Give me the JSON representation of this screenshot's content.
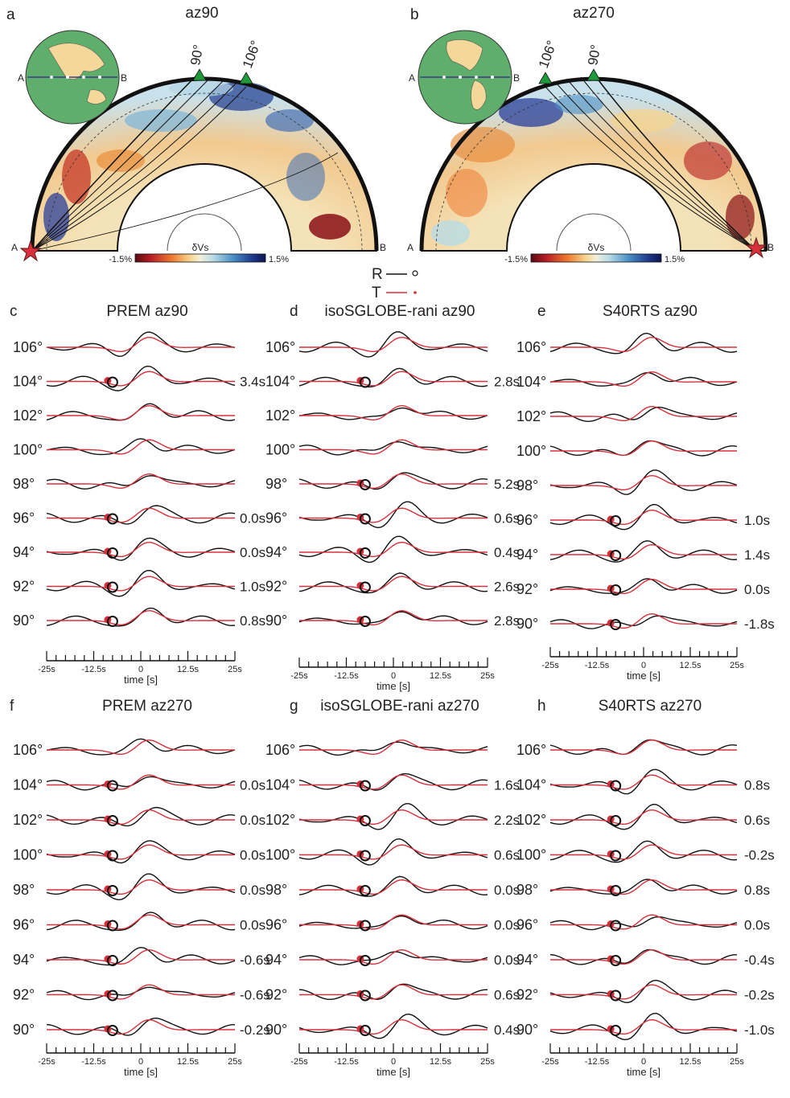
{
  "colors": {
    "radial": "#111111",
    "transverse": "#d7303b",
    "station": "#1e9a3a",
    "source": "#d7303b",
    "ocean": "#5fae6c",
    "land": "#f3d89a"
  },
  "sections": [
    {
      "letter": "a",
      "title": "az90",
      "station_labels": [
        "90°",
        "106°"
      ],
      "end_labels": [
        "A",
        "B"
      ],
      "colorbar": {
        "label": "δVs",
        "min": "-1.5%",
        "max": "1.5%"
      }
    },
    {
      "letter": "b",
      "title": "az270",
      "station_labels": [
        "106°",
        "90°"
      ],
      "end_labels": [
        "A",
        "B"
      ],
      "colorbar": {
        "label": "δVs",
        "min": "-1.5%",
        "max": "1.5%"
      }
    }
  ],
  "globes": [
    {
      "labels": [
        "A",
        "B"
      ]
    },
    {
      "labels": [
        "A",
        "B"
      ]
    }
  ],
  "legend": [
    {
      "label": "R",
      "symbol": "open-circle-icon"
    },
    {
      "label": "T",
      "symbol": "red-dot-icon"
    }
  ],
  "time_axis": {
    "tick_labels": [
      "-25s",
      "-12.5s",
      "0",
      "12.5s",
      "25s"
    ],
    "xlabel": "time [s]"
  },
  "panels": [
    {
      "letter": "c",
      "title": "PREM az90",
      "distances": [
        "106°",
        "104°",
        "102°",
        "100°",
        "98°",
        "96°",
        "94°",
        "92°",
        "90°"
      ],
      "delays": [
        "",
        "3.4s",
        "",
        "",
        "",
        "0.0s",
        "0.0s",
        "1.0s",
        "0.8s"
      ]
    },
    {
      "letter": "d",
      "title": "isoSGLOBE-rani az90",
      "distances": [
        "106°",
        "104°",
        "102°",
        "100°",
        "98°",
        "96°",
        "94°",
        "92°",
        "90°"
      ],
      "delays": [
        "",
        "2.8s",
        "",
        "",
        "5.2s",
        "0.6s",
        "0.4s",
        "2.6s",
        "2.8s"
      ]
    },
    {
      "letter": "e",
      "title": "S40RTS az90",
      "distances": [
        "106°",
        "104°",
        "102°",
        "100°",
        "98°",
        "96°",
        "94°",
        "92°",
        "90°"
      ],
      "delays": [
        "",
        "",
        "",
        "",
        "",
        "1.0s",
        "1.4s",
        "0.0s",
        "-1.8s"
      ]
    },
    {
      "letter": "f",
      "title": "PREM az270",
      "distances": [
        "106°",
        "104°",
        "102°",
        "100°",
        "98°",
        "96°",
        "94°",
        "92°",
        "90°"
      ],
      "delays": [
        "",
        "0.0s",
        "0.0s",
        "0.0s",
        "0.0s",
        "0.0s",
        "-0.6s",
        "-0.6s",
        "-0.2s"
      ]
    },
    {
      "letter": "g",
      "title": "isoSGLOBE-rani az270",
      "distances": [
        "106°",
        "104°",
        "102°",
        "100°",
        "98°",
        "96°",
        "94°",
        "92°",
        "90°"
      ],
      "delays": [
        "",
        "1.6s",
        "2.2s",
        "0.6s",
        "0.0s",
        "0.0s",
        "0.0s",
        "0.6s",
        "0.4s"
      ]
    },
    {
      "letter": "h",
      "title": "S40RTS az270",
      "distances": [
        "106°",
        "104°",
        "102°",
        "100°",
        "98°",
        "96°",
        "94°",
        "92°",
        "90°"
      ],
      "delays": [
        "",
        "0.8s",
        "0.6s",
        "-0.2s",
        "0.8s",
        "0.0s",
        "-0.4s",
        "-0.2s",
        "-1.0s"
      ]
    }
  ]
}
